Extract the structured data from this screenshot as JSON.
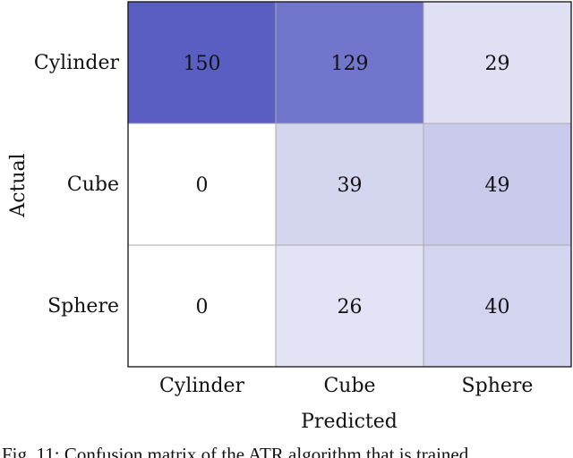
{
  "chart_data": {
    "type": "heatmap",
    "xlabel": "Predicted",
    "ylabel": "Actual",
    "x_categories": [
      "Cylinder",
      "Cube",
      "Sphere"
    ],
    "y_categories": [
      "Cylinder",
      "Cube",
      "Sphere"
    ],
    "values": [
      [
        150,
        129,
        29
      ],
      [
        0,
        39,
        49
      ],
      [
        0,
        26,
        40
      ]
    ],
    "color_min": "#ffffff",
    "color_max": "#5a5ec2",
    "value_max": 150,
    "grid": true
  },
  "caption": {
    "text": "Fig. 11: Confusion matrix of the ATR algorithm that is trained"
  }
}
